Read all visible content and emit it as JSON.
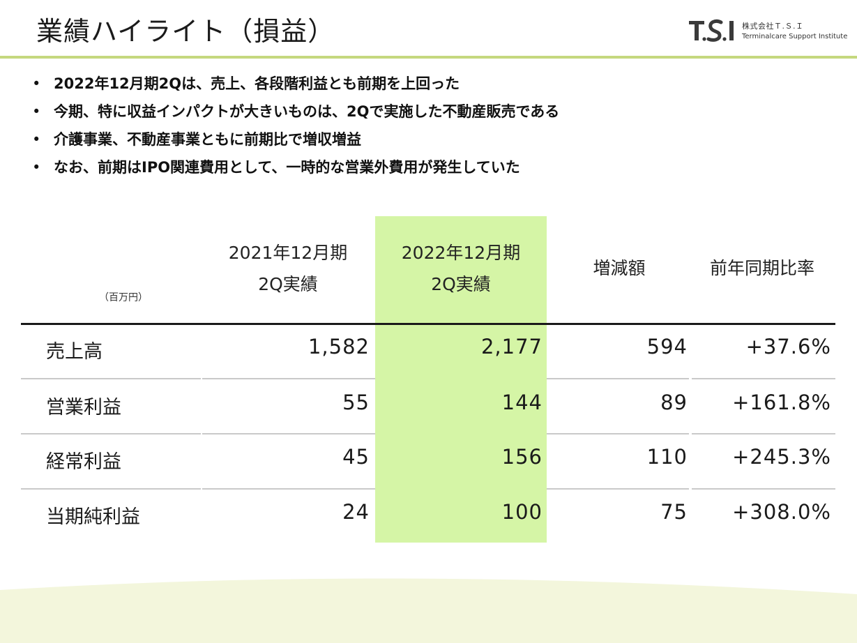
{
  "header": {
    "title": "業績ハイライト（損益）",
    "logo": {
      "company": "株式会社Ｔ.Ｓ.Ｉ",
      "sub": "Terminalcare Support Institute",
      "mark_icon": "tsi-logo-mark"
    }
  },
  "bullets": [
    "2022年12月期2Qは、売上、各段階利益とも前期を上回った",
    "今期、特に収益インパクトが大きいものは、2Qで実施した不動産販売である",
    "介護事業、不動産事業ともに前期比で増収増益",
    "なお、前期はIPO関連費用として、一時的な営業外費用が発生していた"
  ],
  "table": {
    "unit": "（百万円）",
    "headers": {
      "prev": [
        "2021年12月期",
        "2Q実績"
      ],
      "curr": [
        "2022年12月期",
        "2Q実績"
      ],
      "diff": "増減額",
      "ratio": "前年同期比率"
    },
    "rows": [
      {
        "label": "売上高",
        "prev": "1,582",
        "curr": "2,177",
        "diff": "594",
        "ratio": "+37.6%"
      },
      {
        "label": "営業利益",
        "prev": "55",
        "curr": "144",
        "diff": "89",
        "ratio": "+161.8%"
      },
      {
        "label": "経常利益",
        "prev": "45",
        "curr": "156",
        "diff": "110",
        "ratio": "+245.3%"
      },
      {
        "label": "当期純利益",
        "prev": "24",
        "curr": "100",
        "diff": "75",
        "ratio": "+308.0%"
      }
    ]
  },
  "colors": {
    "accent_rule": "#c5d87e",
    "highlight_column": "#d5f5a6",
    "footer_band": "#f3f6dc"
  }
}
